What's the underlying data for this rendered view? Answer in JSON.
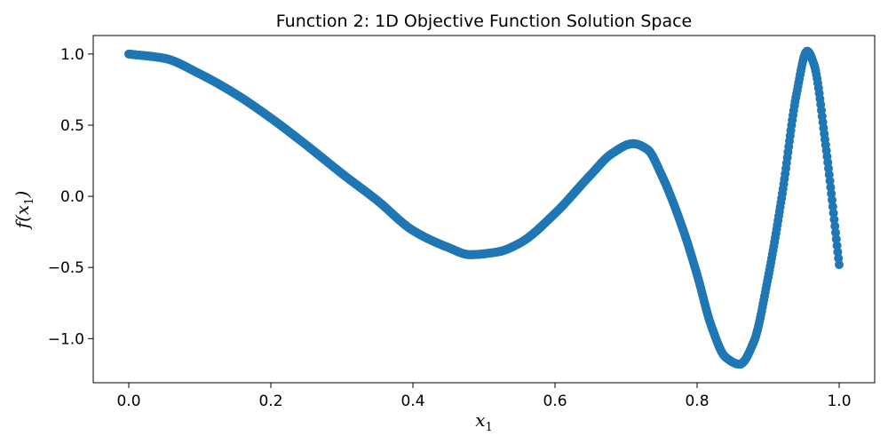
{
  "chart_data": {
    "type": "scatter",
    "title": "Function 2: 1D Objective Function Solution Space",
    "xlabel": {
      "base": "x",
      "sub": "1"
    },
    "ylabel": {
      "func": "f(",
      "base": "x",
      "sub": "1",
      "close": ")"
    },
    "xlim": [
      -0.05,
      1.05
    ],
    "ylim": [
      -1.31,
      1.13
    ],
    "xticks": [
      {
        "value": 0.0,
        "label": "0.0"
      },
      {
        "value": 0.2,
        "label": "0.2"
      },
      {
        "value": 0.4,
        "label": "0.4"
      },
      {
        "value": 0.6,
        "label": "0.6"
      },
      {
        "value": 0.8,
        "label": "0.8"
      },
      {
        "value": 1.0,
        "label": "1.0"
      }
    ],
    "yticks": [
      {
        "value": -1.0,
        "label": "−1.0"
      },
      {
        "value": -0.5,
        "label": "−0.5"
      },
      {
        "value": 0.0,
        "label": "0.0"
      },
      {
        "value": 0.5,
        "label": "0.5"
      },
      {
        "value": 1.0,
        "label": "1.0"
      }
    ],
    "grid": false,
    "marker_color": "#1f77b4",
    "series": [
      {
        "x": [
          0.0,
          0.05,
          0.1,
          0.15,
          0.2,
          0.25,
          0.3,
          0.35,
          0.4,
          0.45,
          0.48,
          0.52,
          0.55,
          0.6,
          0.65,
          0.68,
          0.71,
          0.73,
          0.75,
          0.78,
          0.8,
          0.82,
          0.84,
          0.86,
          0.88,
          0.9,
          0.92,
          0.94,
          0.955,
          0.965,
          0.98,
          1.0
        ],
        "y": [
          1.0,
          0.97,
          0.86,
          0.72,
          0.55,
          0.36,
          0.16,
          -0.03,
          -0.24,
          -0.36,
          -0.41,
          -0.39,
          -0.33,
          -0.12,
          0.15,
          0.3,
          0.37,
          0.33,
          0.15,
          -0.23,
          -0.55,
          -0.91,
          -1.13,
          -1.18,
          -1.02,
          -0.57,
          0.02,
          0.72,
          1.02,
          0.92,
          0.4,
          -0.48
        ]
      }
    ]
  }
}
